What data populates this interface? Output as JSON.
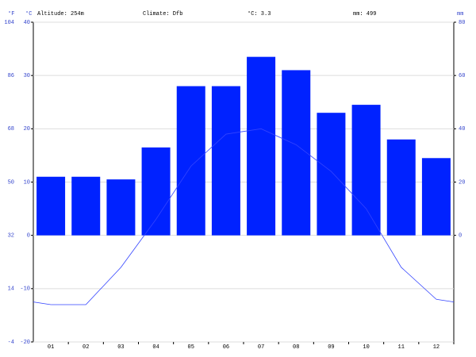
{
  "chart_data": {
    "type": "climate",
    "annotations": [
      "Altitude: 254m",
      "Climate: Dfb",
      "°C: 3.3",
      "mm: 499"
    ],
    "y_label": "°C",
    "y2_label": "mm",
    "y3_label": "°F",
    "categories": [
      "01",
      "02",
      "03",
      "04",
      "05",
      "06",
      "07",
      "08",
      "09",
      "10",
      "11",
      "12"
    ],
    "series": [
      {
        "type": "bar",
        "axis": "y2",
        "color": "#0022ff",
        "values": [
          22,
          22,
          21,
          33,
          56,
          56,
          67,
          62,
          46,
          49,
          36,
          29
        ]
      },
      {
        "type": "line",
        "axis": "y",
        "color": "#3344ff",
        "values": [
          -13,
          -13,
          -6,
          3,
          13,
          19,
          20,
          17,
          12,
          5,
          -6,
          -12
        ]
      }
    ],
    "ylim": [
      -20,
      40
    ],
    "yticks": [
      -20,
      -10,
      0,
      10,
      20,
      30,
      40
    ],
    "y2lim": [
      -40,
      80
    ],
    "y2ticks": [
      0,
      20,
      40,
      60,
      80
    ],
    "y3lim": [
      -4,
      104
    ],
    "y3ticks": [
      -4,
      14,
      32,
      50,
      68,
      86,
      104
    ],
    "grid": true
  }
}
